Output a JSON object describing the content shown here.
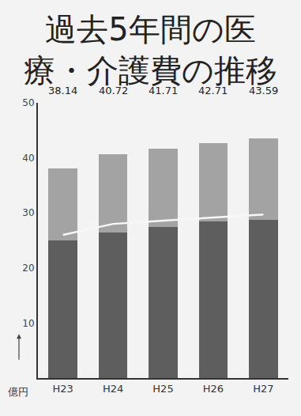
{
  "chart_data": {
    "type": "bar",
    "title": "過去5年間の医療・介護費の推移",
    "categories": [
      "H23",
      "H24",
      "H25",
      "H26",
      "H27"
    ],
    "series": [
      {
        "type": "bar",
        "color": "#5e5e5e",
        "values": [
          25,
          26.5,
          27.5,
          28.5,
          28.8
        ]
      },
      {
        "type": "bar",
        "color": "#a3a3a3",
        "values": [
          13.14,
          14.22,
          14.21,
          14.21,
          14.79
        ]
      },
      {
        "type": "line",
        "color": "#f7f7f7",
        "values": [
          26,
          28,
          28.6,
          29.2,
          29.7
        ]
      }
    ],
    "totals": [
      38.14,
      40.72,
      41.71,
      42.71,
      43.59
    ],
    "y_label": "億円",
    "stacked": true,
    "ylim": [
      0,
      50
    ],
    "yticks": [
      10,
      20,
      30,
      40,
      50
    ],
    "grid": false
  }
}
